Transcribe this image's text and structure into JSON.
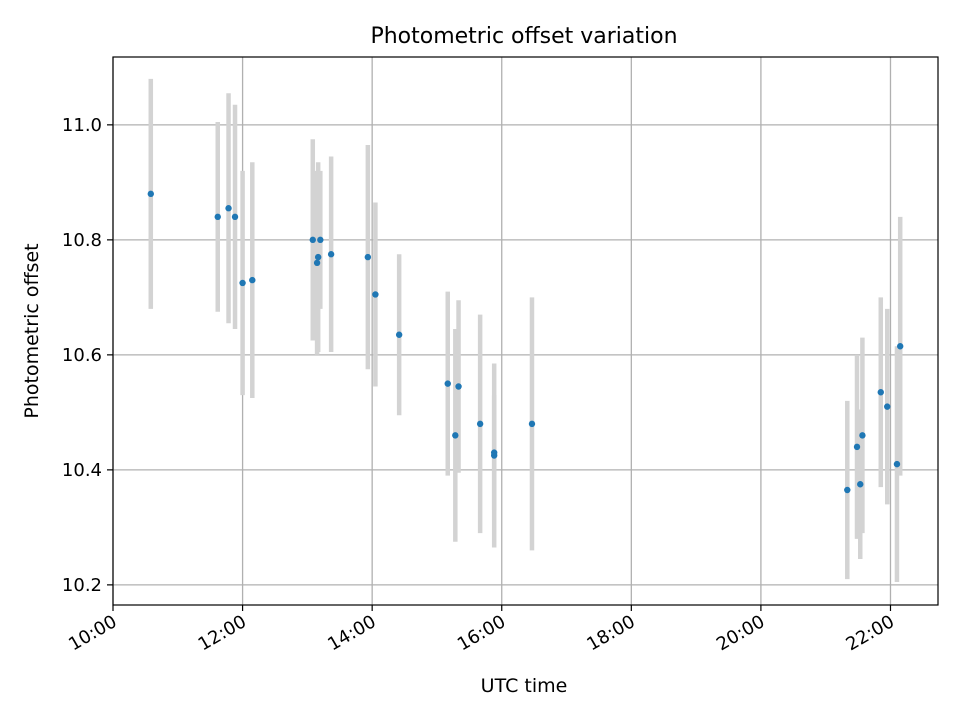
{
  "chart_data": {
    "type": "scatter",
    "title": "Photometric offset variation",
    "xlabel": "UTC time",
    "ylabel": "Photometric offset",
    "xlim": [
      "10:00",
      "22:44"
    ],
    "ylim": [
      10.165,
      11.118
    ],
    "x_ticks": [
      "10:00",
      "12:00",
      "14:00",
      "16:00",
      "18:00",
      "20:00",
      "22:00"
    ],
    "y_ticks": [
      "10.2",
      "10.4",
      "10.6",
      "10.8",
      "11.0"
    ],
    "grid": true,
    "colors": {
      "point": "#1f77b4",
      "errorbar": "#d3d3d3",
      "grid": "#b0b0b0"
    },
    "points": [
      {
        "x": "10:35",
        "y": 10.88,
        "yerr": 0.2
      },
      {
        "x": "11:37",
        "y": 10.84,
        "yerr": 0.165
      },
      {
        "x": "11:47",
        "y": 10.855,
        "yerr": 0.2
      },
      {
        "x": "11:53",
        "y": 10.84,
        "yerr": 0.195
      },
      {
        "x": "12:00",
        "y": 10.725,
        "yerr": 0.195
      },
      {
        "x": "12:09",
        "y": 10.73,
        "yerr": 0.205
      },
      {
        "x": "13:05",
        "y": 10.8,
        "yerr": 0.175
      },
      {
        "x": "13:09",
        "y": 10.76,
        "yerr": 0.16
      },
      {
        "x": "13:10",
        "y": 10.77,
        "yerr": 0.165
      },
      {
        "x": "13:12",
        "y": 10.8,
        "yerr": 0.12
      },
      {
        "x": "13:22",
        "y": 10.775,
        "yerr": 0.17
      },
      {
        "x": "13:56",
        "y": 10.77,
        "yerr": 0.195
      },
      {
        "x": "14:03",
        "y": 10.705,
        "yerr": 0.16
      },
      {
        "x": "14:25",
        "y": 10.635,
        "yerr": 0.14
      },
      {
        "x": "15:10",
        "y": 10.55,
        "yerr": 0.16
      },
      {
        "x": "15:17",
        "y": 10.46,
        "yerr": 0.185
      },
      {
        "x": "15:20",
        "y": 10.545,
        "yerr": 0.15
      },
      {
        "x": "15:40",
        "y": 10.48,
        "yerr": 0.19
      },
      {
        "x": "15:53",
        "y": 10.425,
        "yerr": 0.16
      },
      {
        "x": "15:53",
        "y": 10.43,
        "yerr": 0.1
      },
      {
        "x": "16:28",
        "y": 10.48,
        "yerr": 0.22
      },
      {
        "x": "21:20",
        "y": 10.365,
        "yerr": 0.155
      },
      {
        "x": "21:29",
        "y": 10.44,
        "yerr": 0.16
      },
      {
        "x": "21:32",
        "y": 10.375,
        "yerr": 0.13
      },
      {
        "x": "21:34",
        "y": 10.46,
        "yerr": 0.17
      },
      {
        "x": "21:51",
        "y": 10.535,
        "yerr": 0.165
      },
      {
        "x": "21:57",
        "y": 10.51,
        "yerr": 0.17
      },
      {
        "x": "22:06",
        "y": 10.41,
        "yerr": 0.205
      },
      {
        "x": "22:09",
        "y": 10.615,
        "yerr": 0.225
      }
    ]
  }
}
